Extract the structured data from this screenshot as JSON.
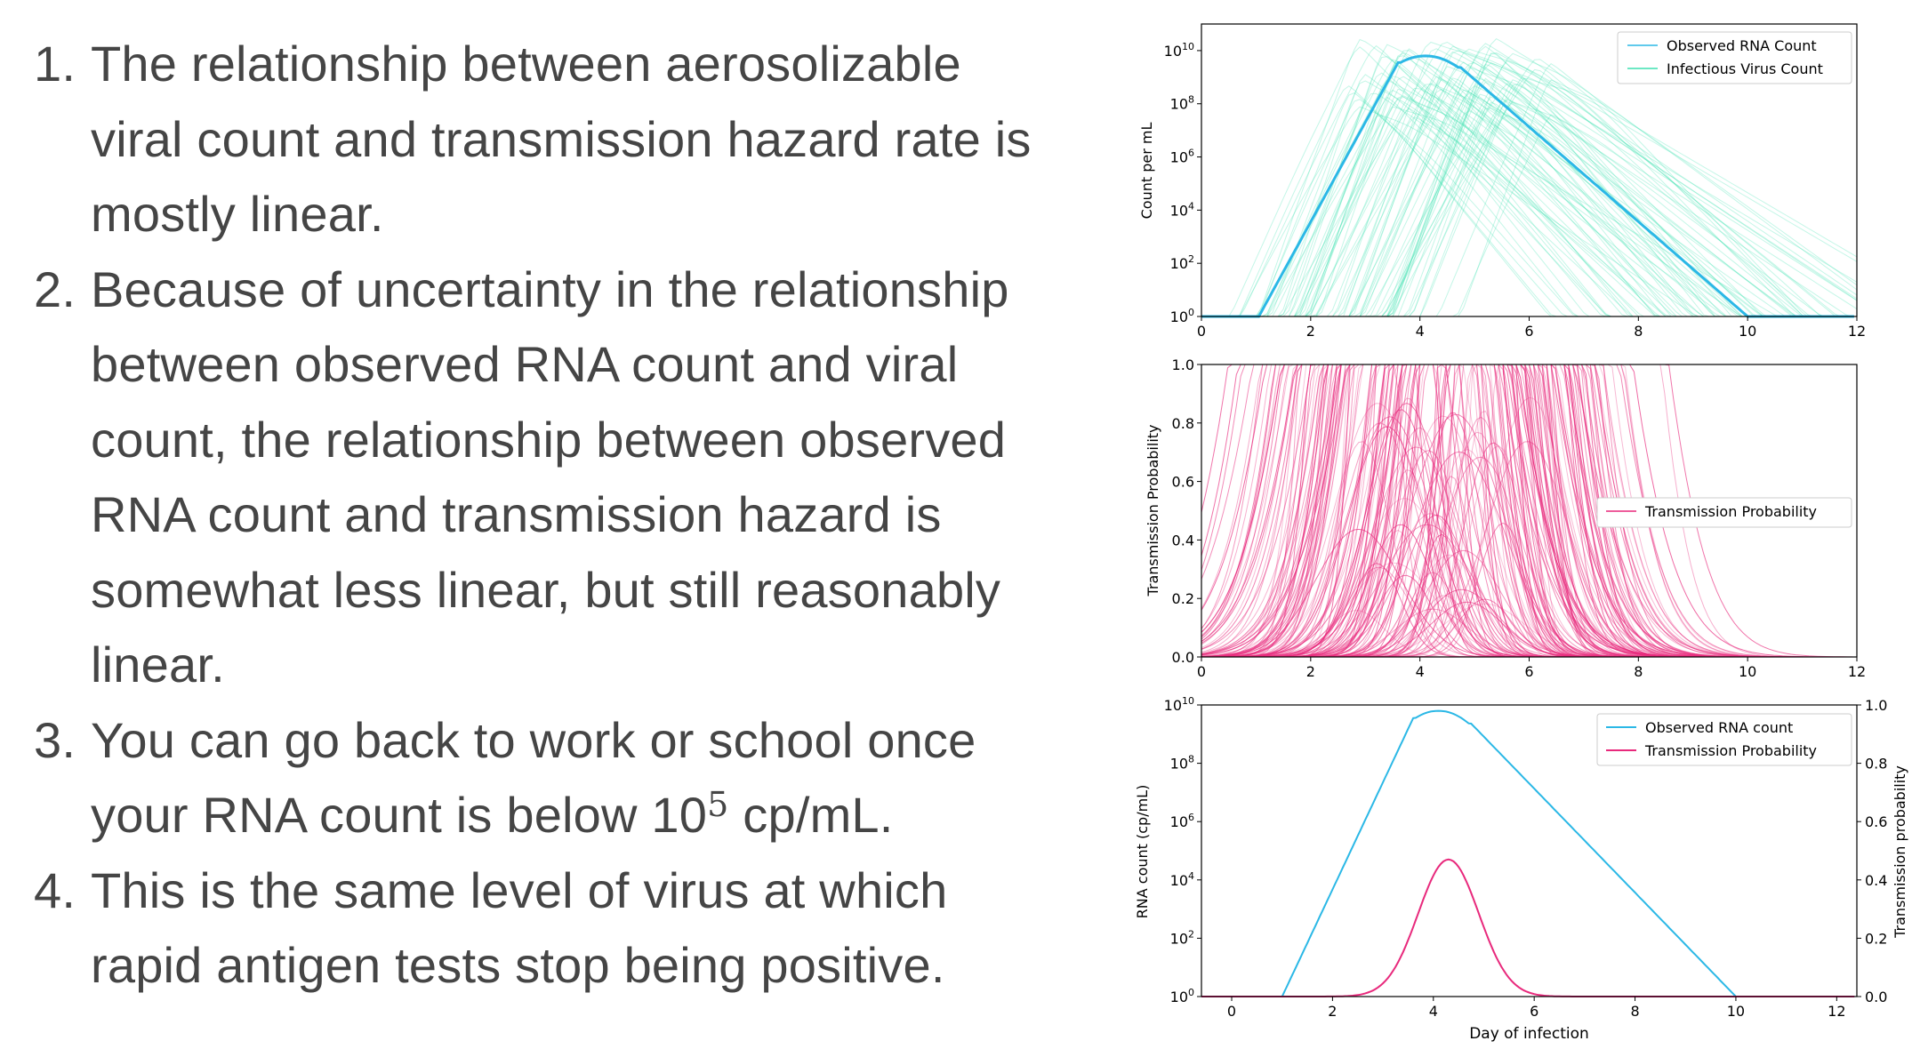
{
  "text": {
    "items": [
      {
        "num": "1.",
        "lines": [
          "The relationship between aerosolizable",
          "viral count and transmission hazard rate is",
          "mostly linear."
        ]
      },
      {
        "num": "2.",
        "lines": [
          "Because of uncertainty in the relationship",
          "between observed RNA count and viral",
          "count, the relationship between observed",
          "RNA count and transmission hazard is",
          "somewhat less linear, but still reasonably",
          "linear."
        ]
      },
      {
        "num": "3.",
        "lines": [
          "You can go back to work or school once"
        ],
        "last_prefix": "your RNA count is below 10",
        "last_sup": "5",
        "last_suffix": " cp/mL."
      },
      {
        "num": "4.",
        "lines": [
          "This is the same level of virus at which",
          "rapid antigen tests stop being positive."
        ]
      }
    ]
  },
  "colors": {
    "rna": "#2bb8e6",
    "virus": "#3de0b0",
    "trans": "#e8297c",
    "text": "#454545"
  },
  "chart_data": [
    {
      "type": "line",
      "ylabel": "Count per mL",
      "yscale": "log",
      "xlim": [
        0,
        12
      ],
      "ylim_exp": [
        0,
        11
      ],
      "xticks": [
        "0",
        "2",
        "4",
        "6",
        "8",
        "10",
        "12"
      ],
      "ytick_exps": [
        "0",
        "2",
        "4",
        "6",
        "8",
        "10"
      ],
      "ytick_base": "10",
      "legend": [
        "Observed RNA Count",
        "Infectious Virus Count"
      ],
      "legend_position": "top-right",
      "series": [
        {
          "name": "Observed RNA Count",
          "x": [
            0,
            1.05,
            3.7,
            4.1,
            4.5,
            10.0,
            12
          ],
          "log10_y": [
            0,
            0,
            9.6,
            9.8,
            9.6,
            0,
            0
          ]
        },
        {
          "name": "Infectious Virus Count",
          "description": "many faint simulated trajectories",
          "peak_day_range": [
            2.5,
            6.5
          ],
          "peak_log10_range": [
            7.5,
            10.5
          ]
        }
      ]
    },
    {
      "type": "line",
      "ylabel": "Transmission Probability",
      "xlim": [
        0,
        12
      ],
      "ylim": [
        0,
        1.0
      ],
      "xticks": [
        "0",
        "2",
        "4",
        "6",
        "8",
        "10",
        "12"
      ],
      "yticks": [
        "0.0",
        "0.2",
        "0.4",
        "0.6",
        "0.8",
        "1.0"
      ],
      "legend": [
        "Transmission Probability"
      ],
      "legend_position": "center-right",
      "series": [
        {
          "name": "Transmission Probability",
          "description": "many faint simulated trajectories",
          "peak_day_range": [
            2.2,
            6.8
          ]
        }
      ]
    },
    {
      "type": "line",
      "xlabel": "Day of infection",
      "ylabel_left": "RNA count (cp/mL)",
      "ylabel_right": "Transmission probability",
      "xlim": [
        -0.6,
        12.4
      ],
      "xticks": [
        "0",
        "2",
        "4",
        "6",
        "8",
        "10",
        "12"
      ],
      "ytick_exps": [
        "0",
        "2",
        "4",
        "6",
        "8",
        "10"
      ],
      "ytick_base": "10",
      "yticks_right": [
        "0.0",
        "0.2",
        "0.4",
        "0.6",
        "0.8",
        "1.0"
      ],
      "legend": [
        "Observed RNA count",
        "Transmission Probability"
      ],
      "legend_position": "top-right",
      "series": [
        {
          "name": "Observed RNA count",
          "x": [
            -0.6,
            1.0,
            3.7,
            4.1,
            4.5,
            10.0,
            12.4
          ],
          "log10_y": [
            0,
            0,
            9.6,
            9.8,
            9.6,
            0,
            0
          ]
        },
        {
          "name": "Transmission Probability",
          "peak_day": 4.3,
          "peak_value": 0.47,
          "width_days": 0.85
        }
      ]
    }
  ]
}
